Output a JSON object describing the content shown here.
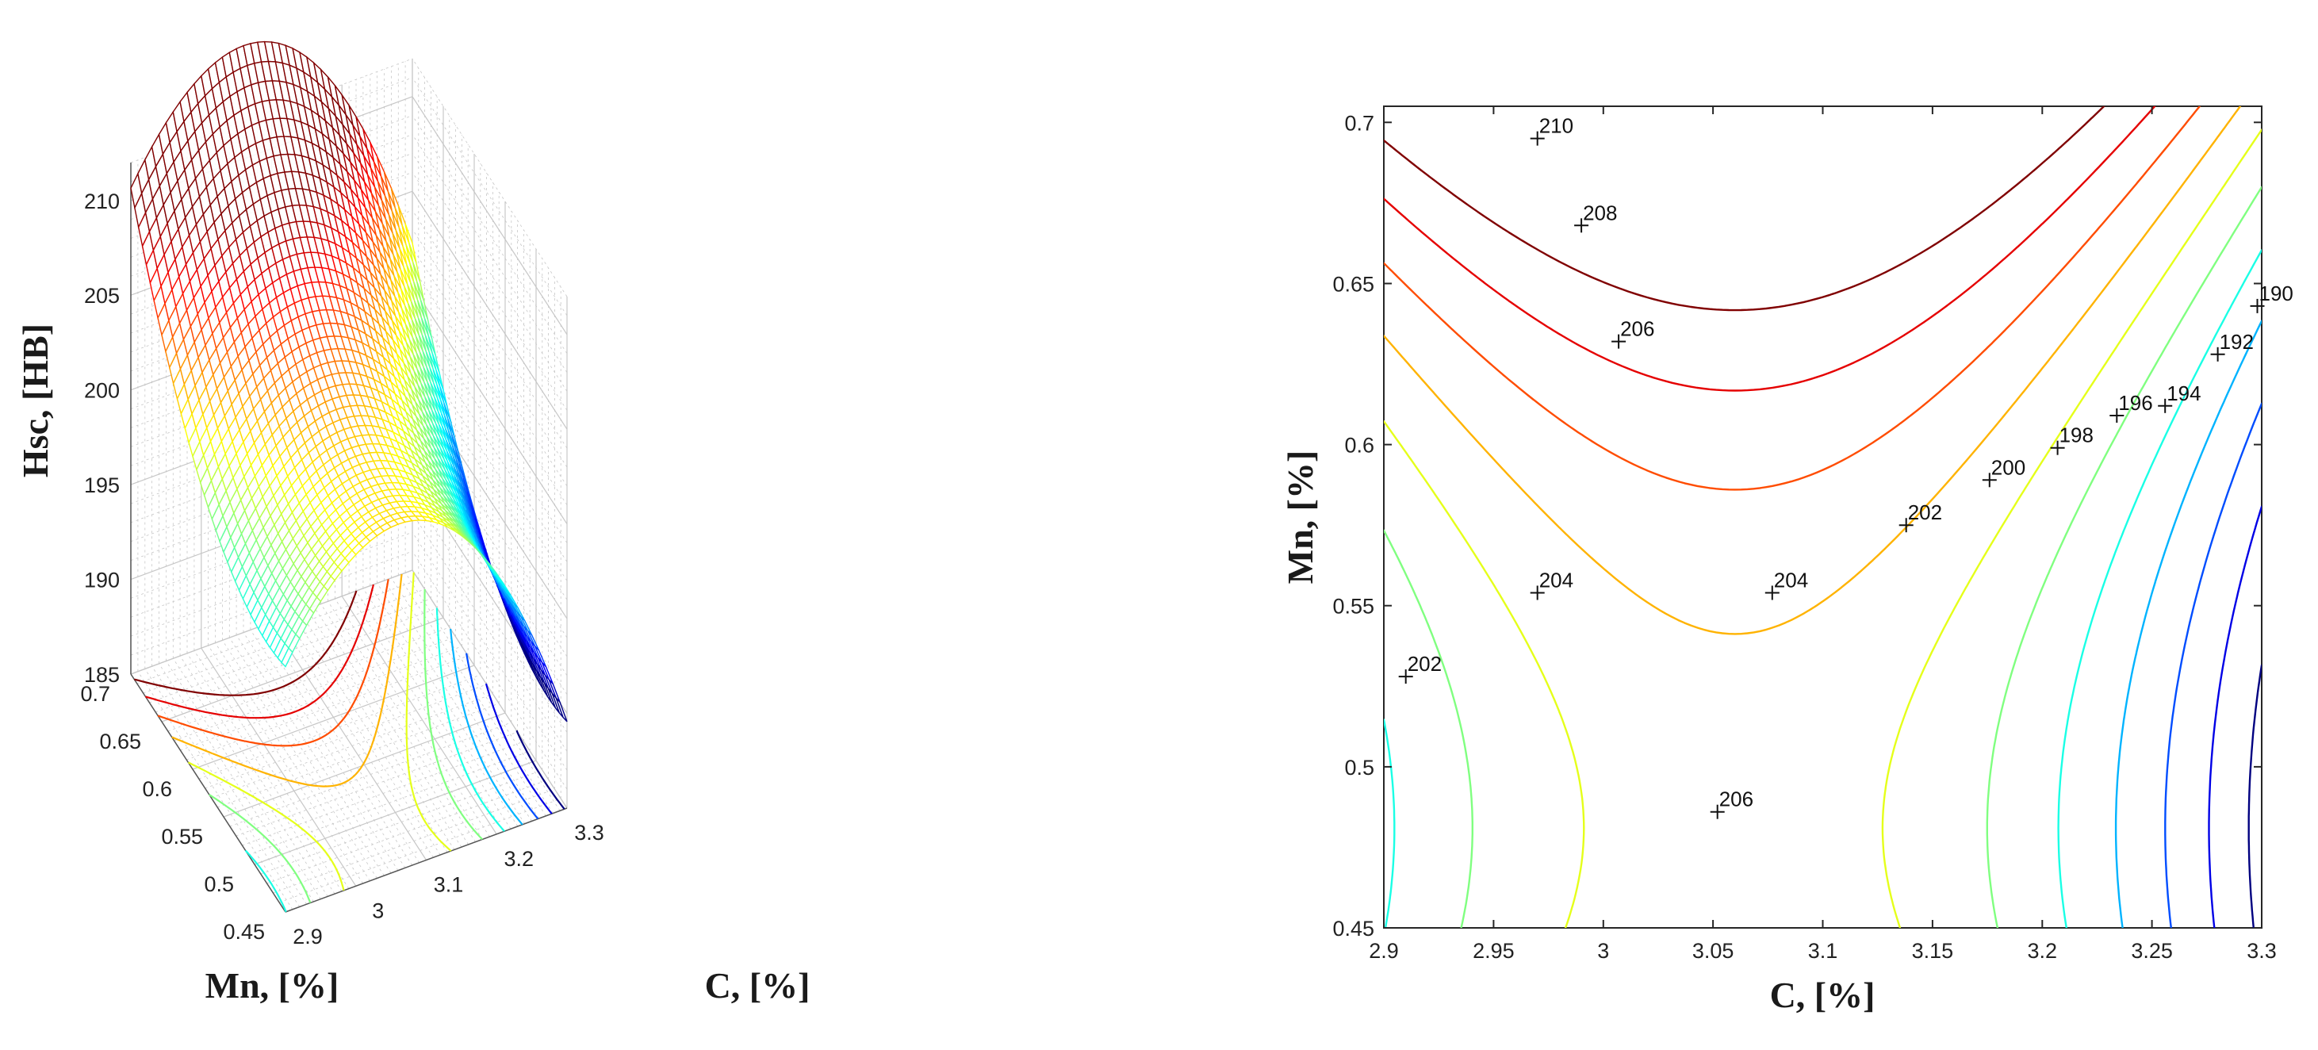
{
  "chart_data": [
    {
      "type": "surface",
      "subtype": "3d-mesh-surface-with-contour-projection",
      "title": "",
      "zlabel": "Hsc, [HB]",
      "xlabel": "C, [%]",
      "ylabel": "Mn, [%]",
      "x_ticks": [
        "2.9",
        "3",
        "3.1",
        "3.2",
        "3.3"
      ],
      "y_ticks": [
        "0.7",
        "0.65",
        "0.6",
        "0.55",
        "0.5",
        "0.45"
      ],
      "z_ticks": [
        "210",
        "205",
        "200",
        "195",
        "190",
        "185"
      ],
      "xlim": [
        2.9,
        3.3
      ],
      "ylim": [
        0.45,
        0.7
      ],
      "zlim": [
        185,
        212
      ],
      "colormap": "jet",
      "grid": true
    },
    {
      "type": "contour",
      "title": "",
      "xlabel": "C, [%]",
      "ylabel": "Mn, [%]",
      "x_ticks": [
        "2.9",
        "2.95",
        "3",
        "3.05",
        "3.1",
        "3.15",
        "3.2",
        "3.25",
        "3.3"
      ],
      "y_ticks": [
        "0.7",
        "0.65",
        "0.6",
        "0.55",
        "0.5",
        "0.45"
      ],
      "xlim": [
        2.9,
        3.3
      ],
      "ylim": [
        0.45,
        0.705
      ],
      "levels": [
        190,
        192,
        194,
        196,
        198,
        200,
        202,
        204,
        206,
        208,
        210
      ],
      "contour_labels": [
        {
          "text": "210",
          "c": 2.97,
          "mn": 0.695
        },
        {
          "text": "208",
          "c": 2.99,
          "mn": 0.668
        },
        {
          "text": "206",
          "c": 3.007,
          "mn": 0.632
        },
        {
          "text": "206",
          "c": 3.052,
          "mn": 0.486
        },
        {
          "text": "204",
          "c": 2.97,
          "mn": 0.554
        },
        {
          "text": "204",
          "c": 3.077,
          "mn": 0.554
        },
        {
          "text": "202",
          "c": 2.91,
          "mn": 0.528
        },
        {
          "text": "202",
          "c": 3.138,
          "mn": 0.575
        },
        {
          "text": "200",
          "c": 3.176,
          "mn": 0.589
        },
        {
          "text": "198",
          "c": 3.207,
          "mn": 0.599
        },
        {
          "text": "196",
          "c": 3.234,
          "mn": 0.609
        },
        {
          "text": "194",
          "c": 3.256,
          "mn": 0.612
        },
        {
          "text": "192",
          "c": 3.28,
          "mn": 0.628
        },
        {
          "text": "190",
          "c": 3.298,
          "mn": 0.643
        }
      ],
      "colormap": "jet",
      "grid": false
    }
  ]
}
